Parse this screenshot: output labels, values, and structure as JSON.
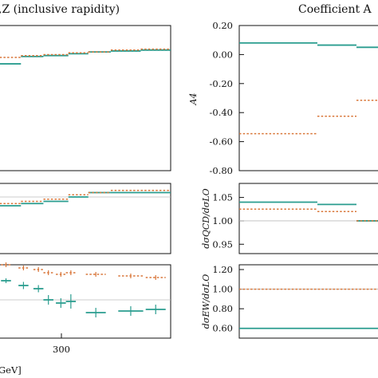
{
  "chart_data": [
    {
      "type": "line",
      "title": ",Z (inclusive rapidity)",
      "xlabel": "GeV]",
      "x_ticks": [
        300
      ],
      "series": [
        {
          "color": "#2a9d8f",
          "style": "solid",
          "steps": [
            [
              150,
              200,
              -0.035
            ],
            [
              200,
              245,
              0.005
            ],
            [
              245,
              295,
              0.01
            ],
            [
              295,
              335,
              0.02
            ],
            [
              335,
              380,
              0.03
            ],
            [
              380,
              440,
              0.035
            ],
            [
              440,
              500,
              0.04
            ]
          ]
        },
        {
          "color": "#d9773a",
          "style": "dotted",
          "steps": [
            [
              150,
              200,
              0.0
            ],
            [
              200,
              245,
              0.01
            ],
            [
              245,
              295,
              0.015
            ],
            [
              295,
              335,
              0.025
            ],
            [
              335,
              380,
              0.03
            ],
            [
              380,
              440,
              0.04
            ],
            [
              440,
              500,
              0.045
            ]
          ]
        }
      ],
      "ratio_qcd": {
        "series": [
          {
            "color": "#2a9d8f",
            "style": "solid",
            "steps": [
              [
                150,
                200,
                0.98
              ],
              [
                200,
                245,
                0.985
              ],
              [
                245,
                295,
                0.99
              ],
              [
                295,
                335,
                1.0
              ],
              [
                335,
                380,
                1.01
              ],
              [
                380,
                440,
                1.01
              ],
              [
                440,
                500,
                1.01
              ]
            ]
          },
          {
            "color": "#d9773a",
            "style": "dotted",
            "steps": [
              [
                150,
                200,
                0.985
              ],
              [
                200,
                245,
                0.99
              ],
              [
                245,
                295,
                0.995
              ],
              [
                295,
                335,
                1.005
              ],
              [
                335,
                380,
                1.01
              ],
              [
                380,
                440,
                1.015
              ],
              [
                440,
                500,
                1.015
              ]
            ]
          }
        ]
      },
      "ratio_ew": {
        "series": [
          {
            "color": "#2a9d8f",
            "style": "solid",
            "points": [
              [
                170,
                0.86,
                10,
                0.01
              ],
              [
                205,
                0.845,
                10,
                0.015
              ],
              [
                235,
                0.835,
                10,
                0.015
              ],
              [
                255,
                0.8,
                10,
                0.02
              ],
              [
                280,
                0.79,
                10,
                0.02
              ],
              [
                300,
                0.795,
                10,
                0.03
              ],
              [
                350,
                0.76,
                20,
                0.02
              ],
              [
                420,
                0.765,
                25,
                0.02
              ],
              [
                470,
                0.77,
                20,
                0.02
              ]
            ]
          },
          {
            "color": "#d9773a",
            "style": "dotted",
            "points": [
              [
                170,
                0.91,
                10,
                0.01
              ],
              [
                205,
                0.9,
                10,
                0.01
              ],
              [
                235,
                0.895,
                10,
                0.01
              ],
              [
                255,
                0.885,
                10,
                0.01
              ],
              [
                280,
                0.88,
                10,
                0.01
              ],
              [
                300,
                0.885,
                10,
                0.01
              ],
              [
                350,
                0.88,
                20,
                0.01
              ],
              [
                420,
                0.875,
                25,
                0.01
              ],
              [
                470,
                0.87,
                20,
                0.01
              ]
            ]
          }
        ]
      }
    },
    {
      "type": "line",
      "title": "Coefficient A",
      "ylabel": "A4",
      "ylim": [
        -0.8,
        0.2
      ],
      "y_ticks": [
        0.2,
        0.0,
        -0.2,
        -0.4,
        -0.6,
        -0.8
      ],
      "series": [
        {
          "color": "#2a9d8f",
          "style": "solid",
          "steps": [
            [
              0,
              1,
              0.08
            ],
            [
              1,
              1.5,
              0.065
            ],
            [
              1.5,
              2,
              0.05
            ]
          ]
        },
        {
          "color": "#d9773a",
          "style": "dotted",
          "steps": [
            [
              0,
              1,
              -0.545
            ],
            [
              1,
              1.5,
              -0.425
            ],
            [
              1.5,
              2,
              -0.315
            ]
          ]
        }
      ],
      "ratio_qcd": {
        "ylabel": "dσQCD/dσLO",
        "ylim": [
          0.93,
          1.08
        ],
        "y_ticks": [
          1.05,
          1.0,
          0.95
        ],
        "series": [
          {
            "color": "#2a9d8f",
            "style": "solid",
            "steps": [
              [
                0,
                1,
                1.04
              ],
              [
                1,
                1.5,
                1.035
              ],
              [
                1.5,
                2,
                1.0
              ]
            ]
          },
          {
            "color": "#d9773a",
            "style": "dotted",
            "steps": [
              [
                0,
                1,
                1.025
              ],
              [
                1,
                1.5,
                1.02
              ],
              [
                1.5,
                2,
                1.0
              ]
            ]
          }
        ]
      },
      "ratio_ew": {
        "ylabel": "dσEW/dσLO",
        "ylim": [
          0.5,
          1.2
        ],
        "y_ticks": [
          1.2,
          1.0,
          0.8,
          0.6
        ],
        "series": [
          {
            "color": "#2a9d8f",
            "style": "solid",
            "steps": [
              [
                0,
                2,
                0.6
              ]
            ]
          },
          {
            "color": "#d9773a",
            "style": "dotted",
            "steps": [
              [
                0,
                2,
                1.0
              ]
            ]
          }
        ]
      }
    }
  ]
}
